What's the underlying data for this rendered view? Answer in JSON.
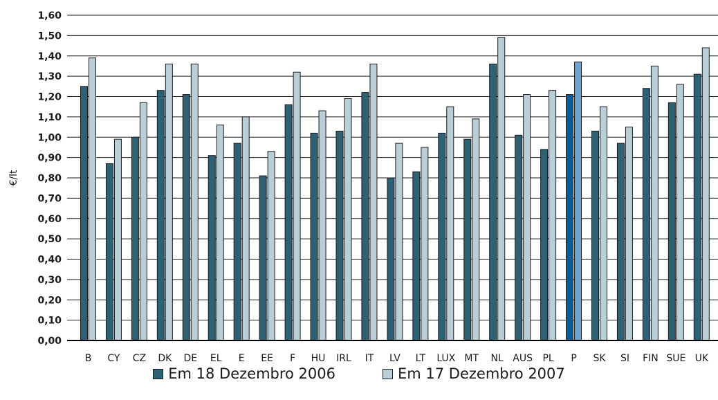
{
  "chart_data": {
    "type": "bar",
    "ylabel": "€/lt",
    "ylim": [
      0,
      1.6
    ],
    "y_ticks": [
      "0,00",
      "0,10",
      "0,20",
      "0,30",
      "0,40",
      "0,50",
      "0,60",
      "0,70",
      "0,80",
      "0,90",
      "1,00",
      "1,10",
      "1,20",
      "1,30",
      "1,40",
      "1,50",
      "1,60"
    ],
    "grid": true,
    "legend_position": "bottom",
    "categories": [
      "B",
      "CY",
      "CZ",
      "DK",
      "DE",
      "EL",
      "E",
      "EE",
      "F",
      "HU",
      "IRL",
      "IT",
      "LV",
      "LT",
      "LUX",
      "MT",
      "NL",
      "AUS",
      "PL",
      "P",
      "SK",
      "SI",
      "FIN",
      "SUE",
      "UK"
    ],
    "highlight_category": "P",
    "series": [
      {
        "name": "Em 18 Dezembro 2006",
        "color": "#2f6174",
        "highlight_color": "#0c5b99",
        "values": [
          1.25,
          0.87,
          1.0,
          1.23,
          1.21,
          0.91,
          0.97,
          0.81,
          1.16,
          1.02,
          1.03,
          1.22,
          0.8,
          0.83,
          1.02,
          0.99,
          1.36,
          1.01,
          0.94,
          1.21,
          1.03,
          0.97,
          1.24,
          1.17,
          1.31
        ]
      },
      {
        "name": "Em 17 Dezembro 2007",
        "color": "#b9ced7",
        "highlight_color": "#6ea2cf",
        "values": [
          1.39,
          0.99,
          1.17,
          1.36,
          1.36,
          1.06,
          1.1,
          0.93,
          1.32,
          1.13,
          1.19,
          1.36,
          0.97,
          0.95,
          1.15,
          1.09,
          1.49,
          1.21,
          1.23,
          1.37,
          1.15,
          1.05,
          1.35,
          1.26,
          1.44
        ]
      }
    ]
  }
}
